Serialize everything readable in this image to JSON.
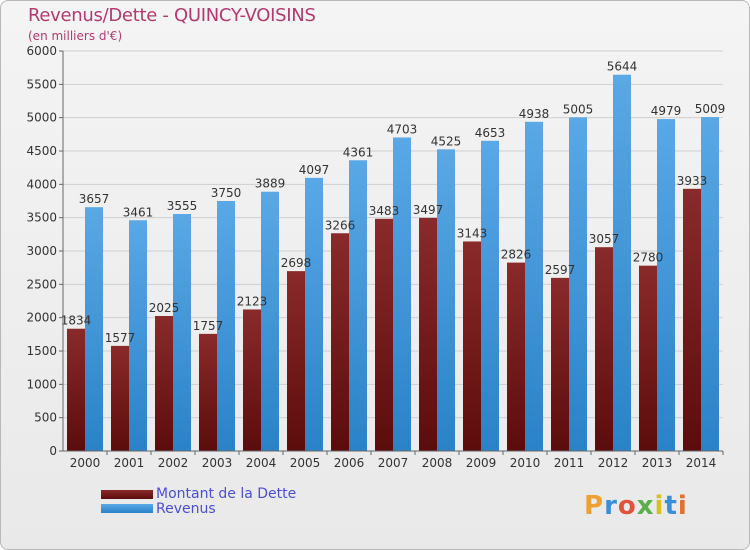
{
  "title": "Revenus/Dette - QUINCY-VOISINS",
  "subtitle": "(en milliers d'€)",
  "logo": {
    "text": "Proxiti",
    "colors": [
      "#f0a030",
      "#3a8fd8",
      "#e0533a",
      "#5ab04a",
      "#d8c020",
      "#3a8fd8",
      "#e07030"
    ]
  },
  "colors": {
    "dette": "#7a1a1a",
    "revenus": "#3d95d9",
    "title": "#b23a6f",
    "legend_text": "#4a4fd6"
  },
  "chart_data": {
    "type": "bar",
    "categories": [
      "2000",
      "2001",
      "2002",
      "2003",
      "2004",
      "2005",
      "2006",
      "2007",
      "2008",
      "2009",
      "2010",
      "2011",
      "2012",
      "2013",
      "2014"
    ],
    "series": [
      {
        "name": "Montant de la Dette",
        "values": [
          1834,
          1577,
          2025,
          1757,
          2123,
          2698,
          3266,
          3483,
          3497,
          3143,
          2826,
          2597,
          3057,
          2780,
          3933
        ],
        "labels": [
          "1834",
          "1577",
          "2025",
          "1757",
          "2123",
          "2698",
          "3266",
          "3483",
          "3497",
          "3143",
          "2826",
          "2597",
          "3057",
          "2780",
          "3933"
        ]
      },
      {
        "name": "Revenus",
        "values": [
          3657,
          3461,
          3555,
          3750,
          3889,
          4097,
          4361,
          4703,
          4525,
          4653,
          4938,
          5005,
          5644,
          4979,
          5009
        ],
        "labels": [
          "3657",
          "3461",
          "3555",
          "3750",
          "3889",
          "4097",
          "4361",
          "4703",
          "4525",
          "4653",
          "4938",
          "5005",
          "5644",
          "4979",
          "5009"
        ]
      }
    ],
    "ylim": [
      0,
      6000
    ],
    "yticks": [
      0,
      500,
      1000,
      1500,
      2000,
      2500,
      3000,
      3500,
      4000,
      4500,
      5000,
      5500,
      6000
    ],
    "grid": true,
    "legend_position": "bottom-left"
  }
}
